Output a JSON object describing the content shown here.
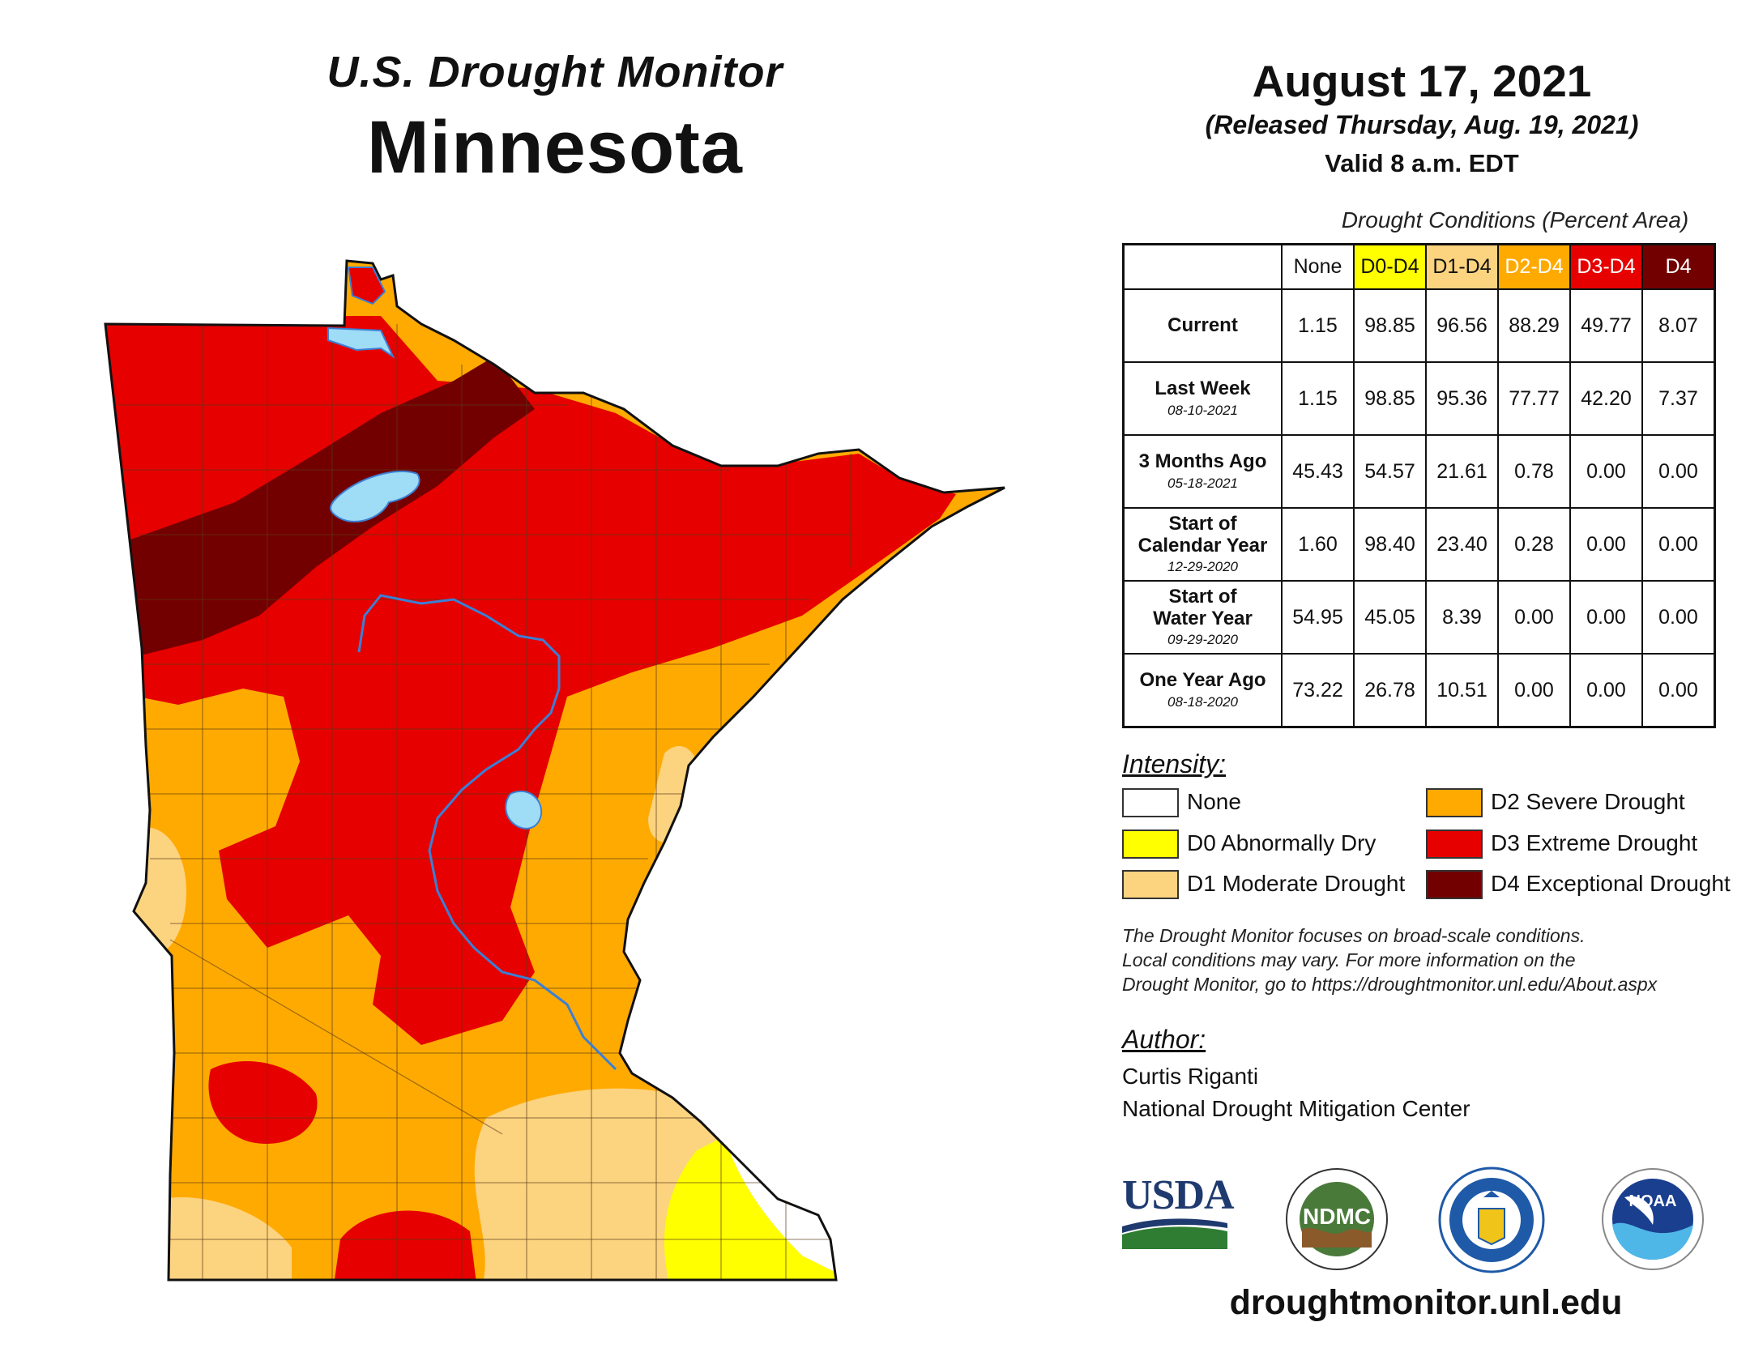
{
  "header": {
    "subtitle": "U.S. Drought Monitor",
    "state": "Minnesota"
  },
  "date_info": {
    "date": "August 17, 2021",
    "released": "(Released Thursday, Aug. 19, 2021)",
    "valid": "Valid 8 a.m. EDT"
  },
  "table": {
    "caption": "Drought Conditions (Percent Area)",
    "columns": [
      {
        "label": "None",
        "bg": "#ffffff",
        "fg": "#111111"
      },
      {
        "label": "D0-D4",
        "bg": "#ffff00",
        "fg": "#111111"
      },
      {
        "label": "D1-D4",
        "bg": "#fcd37f",
        "fg": "#111111"
      },
      {
        "label": "D2-D4",
        "bg": "#ffaa00",
        "fg": "#ffffff"
      },
      {
        "label": "D3-D4",
        "bg": "#e60000",
        "fg": "#ffffff"
      },
      {
        "label": "D4",
        "bg": "#730000",
        "fg": "#ffffff"
      }
    ],
    "rows": [
      {
        "label": [
          "Current"
        ],
        "date": "",
        "values": [
          "1.15",
          "98.85",
          "96.56",
          "88.29",
          "49.77",
          "8.07"
        ]
      },
      {
        "label": [
          "Last Week"
        ],
        "date": "08-10-2021",
        "values": [
          "1.15",
          "98.85",
          "95.36",
          "77.77",
          "42.20",
          "7.37"
        ]
      },
      {
        "label": [
          "3 Months Ago"
        ],
        "date": "05-18-2021",
        "values": [
          "45.43",
          "54.57",
          "21.61",
          "0.78",
          "0.00",
          "0.00"
        ]
      },
      {
        "label": [
          "Start of",
          "Calendar Year"
        ],
        "date": "12-29-2020",
        "values": [
          "1.60",
          "98.40",
          "23.40",
          "0.28",
          "0.00",
          "0.00"
        ]
      },
      {
        "label": [
          "Start of",
          "Water Year"
        ],
        "date": "09-29-2020",
        "values": [
          "54.95",
          "45.05",
          "8.39",
          "0.00",
          "0.00",
          "0.00"
        ]
      },
      {
        "label": [
          "One Year Ago"
        ],
        "date": "08-18-2020",
        "values": [
          "73.22",
          "26.78",
          "10.51",
          "0.00",
          "0.00",
          "0.00"
        ]
      }
    ]
  },
  "legend": {
    "title": "Intensity:",
    "items": [
      {
        "label": "None",
        "color": "#ffffff"
      },
      {
        "label": "D0 Abnormally Dry",
        "color": "#ffff00"
      },
      {
        "label": "D1 Moderate Drought",
        "color": "#fcd37f"
      },
      {
        "label": "D2 Severe Drought",
        "color": "#ffaa00"
      },
      {
        "label": "D3 Extreme Drought",
        "color": "#e60000"
      },
      {
        "label": "D4 Exceptional Drought",
        "color": "#730000"
      }
    ]
  },
  "disclaimer": {
    "line1": "The Drought Monitor focuses on broad-scale conditions.",
    "line2": "Local conditions may vary. For more information on the",
    "line3": "Drought Monitor, go to https://droughtmonitor.unl.edu/About.aspx"
  },
  "author": {
    "title": "Author:",
    "name": "Curtis Riganti",
    "org": "National Drought Mitigation Center"
  },
  "logos": {
    "usda": "USDA",
    "ndmc": "NDMC",
    "noaa": "NOAA"
  },
  "website": "droughtmonitor.unl.edu",
  "colors": {
    "none": "#ffffff",
    "d0": "#ffff00",
    "d1": "#fcd37f",
    "d2": "#ffaa00",
    "d3": "#e60000",
    "d4": "#730000",
    "water": "#9fdcf5",
    "river": "#3b7fd6"
  }
}
